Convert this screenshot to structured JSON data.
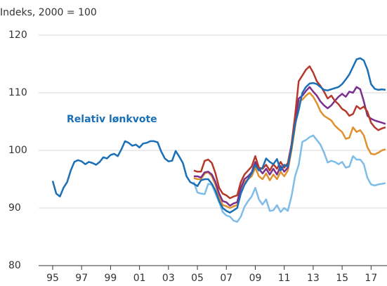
{
  "chart_data": {
    "type": "line",
    "y_label": "Indeks, 2000 = 100",
    "xlim": [
      1994.03,
      2018.1
    ],
    "ylim": [
      80,
      120
    ],
    "yticks": [
      80,
      90,
      100,
      110,
      120
    ],
    "xticks": [
      {
        "value": 1995,
        "label": "95"
      },
      {
        "value": 1997,
        "label": "97"
      },
      {
        "value": 1999,
        "label": "99"
      },
      {
        "value": 2001,
        "label": "01"
      },
      {
        "value": 2003,
        "label": "03"
      },
      {
        "value": 2005,
        "label": "05"
      },
      {
        "value": 2007,
        "label": "07"
      },
      {
        "value": 2009,
        "label": "09"
      },
      {
        "value": 2011,
        "label": "11"
      },
      {
        "value": 2013,
        "label": "13"
      },
      {
        "value": 2015,
        "label": "15"
      },
      {
        "value": 2017,
        "label": "17"
      }
    ],
    "grid": true,
    "series": [
      {
        "name": "Relativ lønkvote",
        "color": "#1a6fb6",
        "x": [
          1995,
          1995.25,
          1995.5,
          1995.75,
          1996,
          1996.25,
          1996.5,
          1996.75,
          1997,
          1997.25,
          1997.5,
          1997.75,
          1998,
          1998.25,
          1998.5,
          1998.75,
          1999,
          1999.25,
          1999.5,
          1999.75,
          2000,
          2000.25,
          2000.5,
          2000.75,
          2001,
          2001.25,
          2001.5,
          2001.75,
          2002,
          2002.25,
          2002.5,
          2002.75,
          2003,
          2003.25,
          2003.5,
          2003.75,
          2004,
          2004.25,
          2004.5,
          2004.75,
          2005,
          2005.25,
          2005.5,
          2005.75,
          2006,
          2006.25,
          2006.5,
          2006.75,
          2007,
          2007.25,
          2007.5,
          2007.75,
          2008,
          2008.25,
          2008.5,
          2008.75,
          2009,
          2009.25,
          2009.5,
          2009.75,
          2010,
          2010.25,
          2010.5,
          2010.75,
          2011,
          2011.25,
          2011.5,
          2011.75,
          2012,
          2012.25,
          2012.5,
          2012.75,
          2013,
          2013.25,
          2013.5,
          2013.75,
          2014,
          2014.25,
          2014.5,
          2014.75,
          2015,
          2015.25,
          2015.5,
          2015.75,
          2016,
          2016.25,
          2016.5,
          2016.75,
          2017,
          2017.25,
          2017.5,
          2017.75,
          2018
        ],
        "values": [
          94.7,
          92.5,
          92,
          93.5,
          94.5,
          96.5,
          98,
          98.3,
          98.1,
          97.6,
          98,
          97.8,
          97.5,
          98,
          98.8,
          98.6,
          99.2,
          99.4,
          99,
          100.2,
          101.6,
          101.3,
          100.8,
          101,
          100.5,
          101.2,
          101.3,
          101.6,
          101.6,
          101.4,
          99.8,
          98.6,
          98.1,
          98.2,
          99.9,
          98.9,
          97.8,
          95.5,
          94.5,
          94.2,
          93.8,
          94.8,
          95,
          95,
          94.2,
          93,
          91.2,
          90,
          89.5,
          89.2,
          89.6,
          90,
          92.5,
          94,
          95,
          96,
          97.5,
          96.5,
          97,
          98.6,
          98,
          97.6,
          98.5,
          96.5,
          97.5,
          97.2,
          100.5,
          104.5,
          107,
          110,
          111,
          111.6,
          111.7,
          111.5,
          111,
          110.5,
          110.4,
          110.6,
          110.8,
          111,
          111.5,
          112.3,
          113.2,
          114.5,
          115.8,
          116,
          115.6,
          114,
          111.5,
          110.7,
          110.5,
          110.6,
          110.5
        ]
      },
      {
        "color": "#b5392a",
        "x": [
          2004.75,
          2005,
          2005.25,
          2005.5,
          2005.75,
          2006,
          2006.25,
          2006.5,
          2006.75,
          2007,
          2007.25,
          2007.5,
          2007.75,
          2008,
          2008.25,
          2008.5,
          2008.75,
          2009,
          2009.25,
          2009.5,
          2009.75,
          2010,
          2010.25,
          2010.5,
          2010.75,
          2011,
          2011.25,
          2011.5,
          2011.75,
          2012,
          2012.25,
          2012.5,
          2012.75,
          2013,
          2013.25,
          2013.5,
          2013.75,
          2014,
          2014.25,
          2014.5,
          2014.75,
          2015,
          2015.25,
          2015.5,
          2015.75,
          2016,
          2016.25,
          2016.5,
          2016.75,
          2017,
          2017.25,
          2017.5,
          2017.75,
          2018
        ],
        "values": [
          96.5,
          96.3,
          96.3,
          98.2,
          98.4,
          97.8,
          96,
          93.5,
          92.5,
          92.2,
          91.7,
          92,
          92.2,
          94.5,
          95.8,
          96.5,
          97.2,
          99,
          97,
          96.8,
          97.5,
          96.5,
          97.6,
          96.8,
          98,
          97,
          97.8,
          101,
          106,
          112,
          113,
          114,
          114.6,
          113.5,
          112,
          111.2,
          110.2,
          109,
          109.5,
          108.6,
          108,
          107.2,
          106.8,
          106,
          106.3,
          107.7,
          107.2,
          107.6,
          106.7,
          104.8,
          104,
          103.5,
          103.8,
          104
        ]
      },
      {
        "color": "#7b2f8f",
        "x": [
          2004.75,
          2005,
          2005.25,
          2005.5,
          2005.75,
          2006,
          2006.25,
          2006.5,
          2006.75,
          2007,
          2007.25,
          2007.5,
          2007.75,
          2008,
          2008.25,
          2008.5,
          2008.75,
          2009,
          2009.25,
          2009.5,
          2009.75,
          2010,
          2010.25,
          2010.5,
          2010.75,
          2011,
          2011.25,
          2011.5,
          2011.75,
          2012,
          2012.25,
          2012.5,
          2012.75,
          2013,
          2013.25,
          2013.5,
          2013.75,
          2014,
          2014.25,
          2014.5,
          2014.75,
          2015,
          2015.25,
          2015.5,
          2015.75,
          2016,
          2016.25,
          2016.5,
          2016.75,
          2017,
          2017.25,
          2017.5,
          2017.75,
          2018
        ],
        "values": [
          95.5,
          95.5,
          95.3,
          96.2,
          96.3,
          95.8,
          94.5,
          92.5,
          91.2,
          91,
          90.4,
          90.8,
          91,
          93.5,
          95,
          95.5,
          96.2,
          98,
          96.8,
          96,
          96.8,
          95.8,
          96.8,
          95.8,
          97.3,
          96.3,
          97,
          100.5,
          105,
          109,
          109.5,
          110.3,
          111,
          110.2,
          109.5,
          108.5,
          107.8,
          107.3,
          107.8,
          108.6,
          109.3,
          109.8,
          109.3,
          110.2,
          110,
          111,
          110.6,
          108.5,
          106,
          105.5,
          105.2,
          105,
          104.8,
          104.6
        ]
      },
      {
        "color": "#e0912f",
        "x": [
          2004.75,
          2005,
          2005.25,
          2005.5,
          2005.75,
          2006,
          2006.25,
          2006.5,
          2006.75,
          2007,
          2007.25,
          2007.5,
          2007.75,
          2008,
          2008.25,
          2008.5,
          2008.75,
          2009,
          2009.25,
          2009.5,
          2009.75,
          2010,
          2010.25,
          2010.5,
          2010.75,
          2011,
          2011.25,
          2011.5,
          2011.75,
          2012,
          2012.25,
          2012.5,
          2012.75,
          2013,
          2013.25,
          2013.5,
          2013.75,
          2014,
          2014.25,
          2014.5,
          2014.75,
          2015,
          2015.25,
          2015.5,
          2015.75,
          2016,
          2016.25,
          2016.5,
          2016.75,
          2017,
          2017.25,
          2017.5,
          2017.75,
          2018
        ],
        "values": [
          95.2,
          95,
          95,
          96,
          96.2,
          95.5,
          94,
          92,
          90.5,
          90.3,
          90,
          90.3,
          90.5,
          93,
          94.5,
          95,
          95.5,
          97,
          95.5,
          95,
          96,
          94.8,
          95.8,
          95,
          96.3,
          95.5,
          96.5,
          100,
          104,
          108.5,
          108.8,
          109.5,
          110,
          109.3,
          108.2,
          106.8,
          106,
          105.6,
          105.2,
          104.3,
          103.7,
          103.2,
          102,
          102.2,
          104,
          103.2,
          103.5,
          102.6,
          100.5,
          99.4,
          99.3,
          99.6,
          100,
          100.2
        ]
      },
      {
        "color": "#7fbde8",
        "x": [
          2004.75,
          2005,
          2005.25,
          2005.5,
          2005.75,
          2006,
          2006.25,
          2006.5,
          2006.75,
          2007,
          2007.25,
          2007.5,
          2007.75,
          2008,
          2008.25,
          2008.5,
          2008.75,
          2009,
          2009.25,
          2009.5,
          2009.75,
          2010,
          2010.25,
          2010.5,
          2010.75,
          2011,
          2011.25,
          2011.5,
          2011.75,
          2012,
          2012.25,
          2012.5,
          2012.75,
          2013,
          2013.25,
          2013.5,
          2013.75,
          2014,
          2014.25,
          2014.5,
          2014.75,
          2015,
          2015.25,
          2015.5,
          2015.75,
          2016,
          2016.25,
          2016.5,
          2016.75,
          2017,
          2017.25,
          2017.5,
          2017.75,
          2018
        ],
        "values": [
          94.5,
          92.7,
          92.5,
          92.4,
          94.2,
          94,
          92.5,
          91,
          89.3,
          88.7,
          88.5,
          87.8,
          87.6,
          88.5,
          90.2,
          91.2,
          92,
          93.5,
          91.5,
          90.6,
          91.5,
          89.5,
          89.6,
          90.5,
          89.3,
          90,
          89.5,
          92,
          95.5,
          97.5,
          101.5,
          101.8,
          102.3,
          102.6,
          101.8,
          101,
          99.6,
          97.9,
          98.2,
          98,
          97.6,
          98,
          97,
          97.2,
          99,
          98.4,
          98.4,
          97.6,
          95.2,
          94.1,
          93.9,
          94.1,
          94.2,
          94.3
        ]
      }
    ]
  }
}
